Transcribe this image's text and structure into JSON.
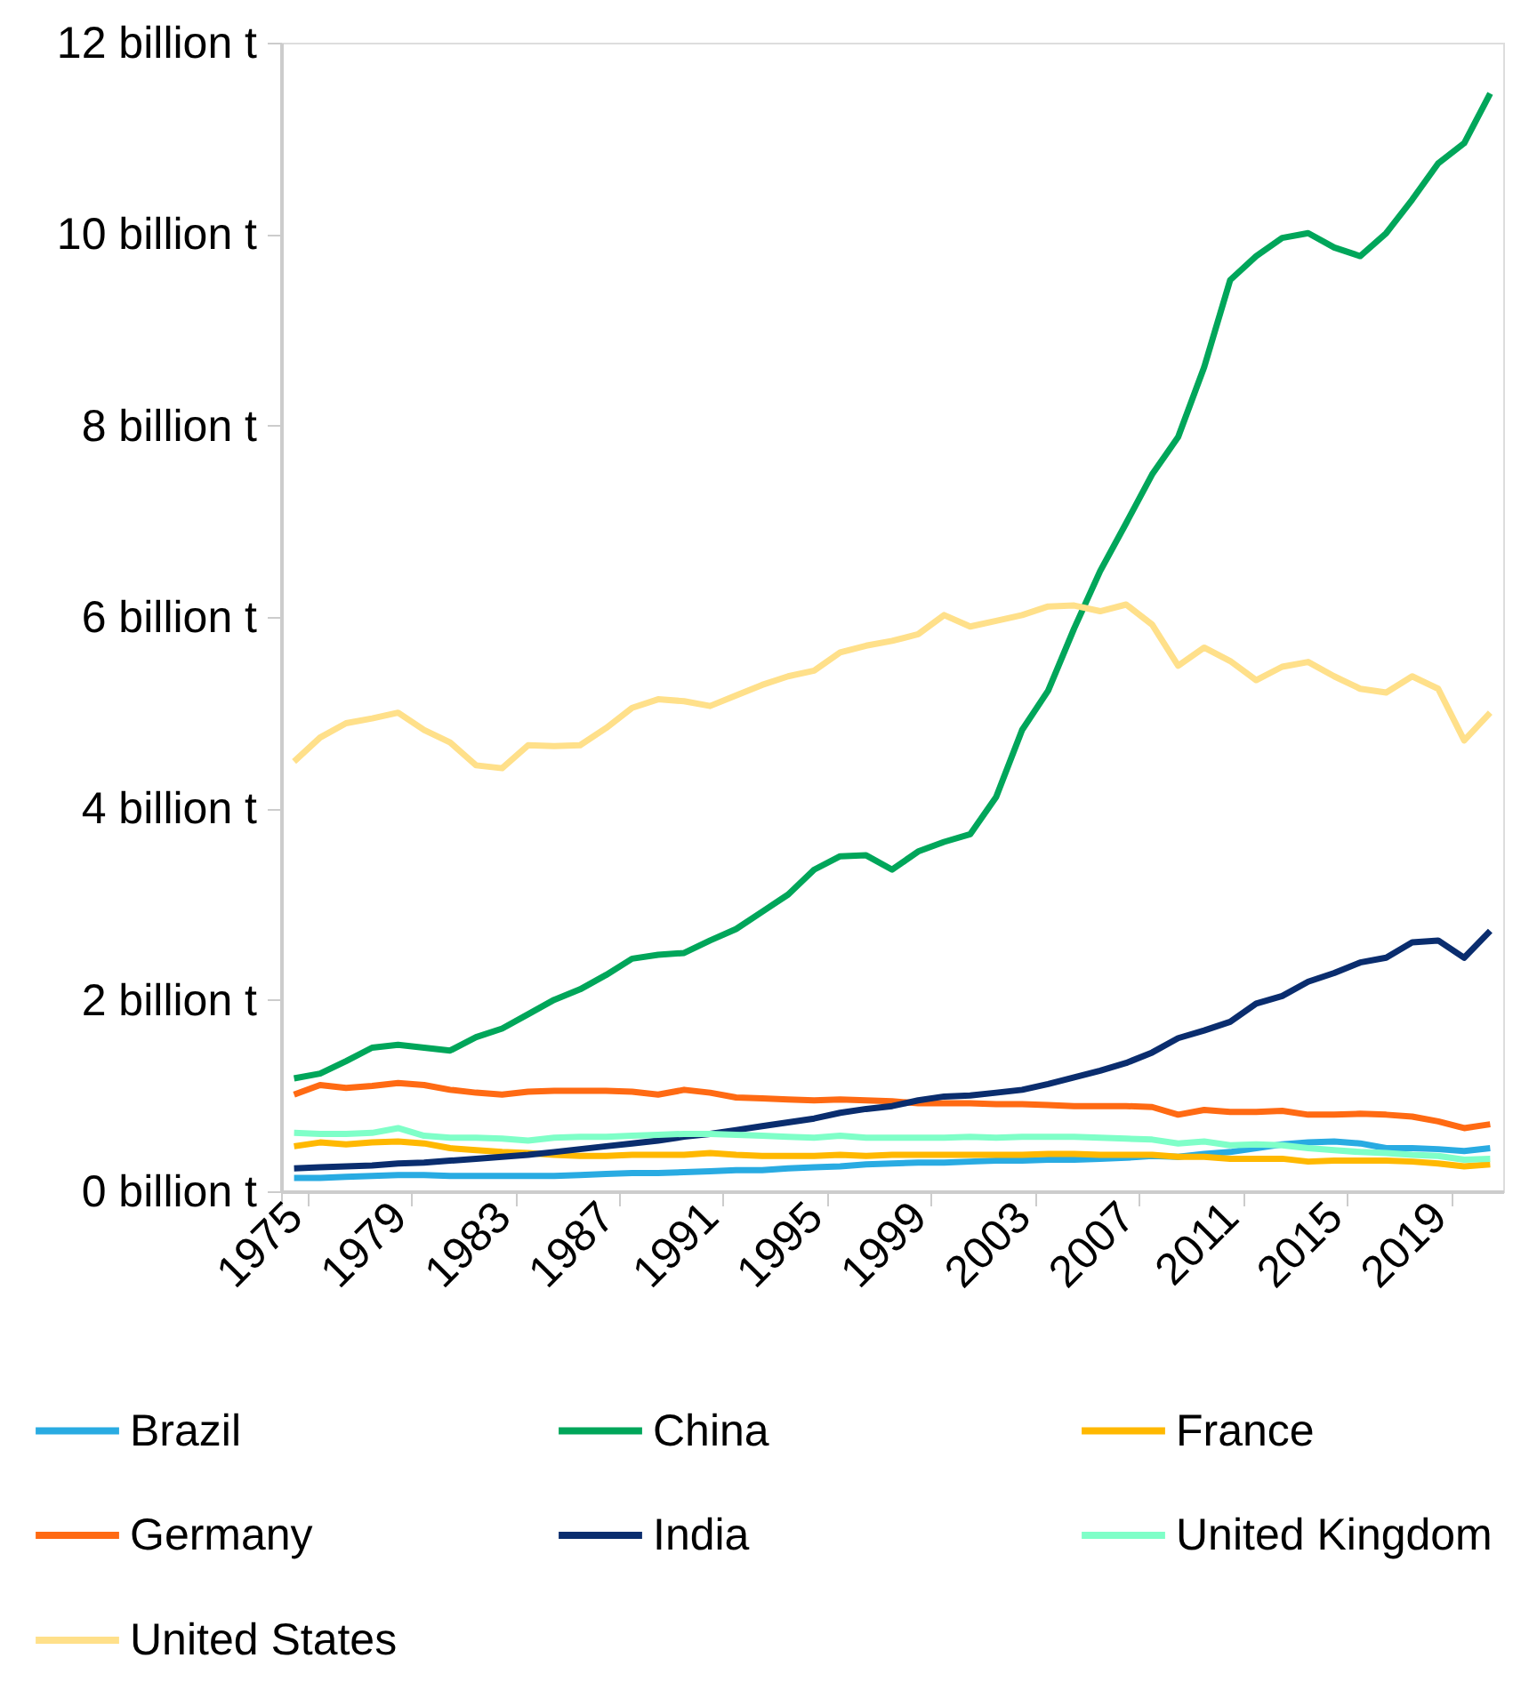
{
  "chart_data": {
    "type": "line",
    "categories": [
      "1975",
      null,
      null,
      null,
      "1979",
      null,
      null,
      null,
      "1983",
      null,
      null,
      null,
      "1987",
      null,
      null,
      null,
      "1991",
      null,
      null,
      null,
      "1995",
      null,
      null,
      null,
      "1999",
      null,
      null,
      null,
      "2003",
      null,
      null,
      null,
      "2007",
      null,
      null,
      null,
      "2011",
      null,
      null,
      null,
      "2015",
      null,
      null,
      null,
      "2019",
      null,
      null
    ],
    "ylim": [
      0,
      12
    ],
    "yticks": [
      {
        "value": 0,
        "label": "0 billion t"
      },
      {
        "value": 2,
        "label": "2 billion t"
      },
      {
        "value": 4,
        "label": "4 billion t"
      },
      {
        "value": 6,
        "label": "6 billion t"
      },
      {
        "value": 8,
        "label": "8 billion t"
      },
      {
        "value": 10,
        "label": "10 billion t"
      },
      {
        "value": 12,
        "label": "12 billion t"
      }
    ],
    "grid": false,
    "legend": "bottom",
    "marker": "none",
    "line_style": "solid",
    "series": [
      {
        "name": "Brazil",
        "color": "#29abe2",
        "values": [
          0.14,
          0.14,
          0.15,
          0.16,
          0.17,
          0.17,
          0.16,
          0.16,
          0.16,
          0.16,
          0.16,
          0.17,
          0.18,
          0.19,
          0.19,
          0.2,
          0.21,
          0.22,
          0.22,
          0.24,
          0.25,
          0.26,
          0.28,
          0.29,
          0.3,
          0.3,
          0.31,
          0.32,
          0.32,
          0.33,
          0.33,
          0.34,
          0.35,
          0.37,
          0.36,
          0.39,
          0.41,
          0.45,
          0.49,
          0.51,
          0.52,
          0.5,
          0.45,
          0.45,
          0.44,
          0.42,
          0.45
        ]
      },
      {
        "name": "China",
        "color": "#00a65a",
        "values": [
          1.18,
          1.23,
          1.36,
          1.5,
          1.53,
          1.5,
          1.47,
          1.61,
          1.7,
          1.85,
          2.0,
          2.11,
          2.26,
          2.43,
          2.47,
          2.49,
          2.62,
          2.74,
          2.92,
          3.1,
          3.36,
          3.5,
          3.51,
          3.36,
          3.55,
          3.65,
          3.73,
          4.12,
          4.82,
          5.23,
          5.88,
          6.48,
          6.98,
          7.49,
          7.88,
          8.61,
          9.52,
          9.77,
          9.96,
          10.01,
          9.86,
          9.77,
          10.01,
          10.36,
          10.74,
          10.95,
          11.47
        ]
      },
      {
        "name": "France",
        "color": "#ffb800",
        "values": [
          0.47,
          0.51,
          0.49,
          0.51,
          0.52,
          0.5,
          0.45,
          0.43,
          0.41,
          0.4,
          0.38,
          0.37,
          0.37,
          0.38,
          0.38,
          0.38,
          0.4,
          0.38,
          0.37,
          0.37,
          0.37,
          0.38,
          0.37,
          0.38,
          0.38,
          0.38,
          0.38,
          0.38,
          0.38,
          0.39,
          0.39,
          0.38,
          0.38,
          0.38,
          0.36,
          0.36,
          0.34,
          0.34,
          0.34,
          0.31,
          0.32,
          0.32,
          0.32,
          0.31,
          0.29,
          0.26,
          0.28
        ]
      },
      {
        "name": "Germany",
        "color": "#ff6a13",
        "values": [
          1.01,
          1.11,
          1.08,
          1.1,
          1.13,
          1.11,
          1.06,
          1.03,
          1.01,
          1.04,
          1.05,
          1.05,
          1.05,
          1.04,
          1.01,
          1.06,
          1.03,
          0.98,
          0.97,
          0.96,
          0.95,
          0.96,
          0.95,
          0.94,
          0.92,
          0.92,
          0.92,
          0.91,
          0.91,
          0.9,
          0.89,
          0.89,
          0.89,
          0.88,
          0.8,
          0.85,
          0.83,
          0.83,
          0.84,
          0.8,
          0.8,
          0.81,
          0.8,
          0.78,
          0.73,
          0.66,
          0.7
        ]
      },
      {
        "name": "India",
        "color": "#0a2d6e",
        "values": [
          0.24,
          0.25,
          0.26,
          0.27,
          0.29,
          0.3,
          0.32,
          0.34,
          0.36,
          0.38,
          0.41,
          0.44,
          0.47,
          0.5,
          0.53,
          0.57,
          0.6,
          0.64,
          0.68,
          0.72,
          0.76,
          0.82,
          0.86,
          0.89,
          0.95,
          0.99,
          1.0,
          1.03,
          1.06,
          1.12,
          1.19,
          1.26,
          1.34,
          1.45,
          1.6,
          1.68,
          1.77,
          1.96,
          2.04,
          2.19,
          2.28,
          2.39,
          2.44,
          2.6,
          2.62,
          2.44,
          2.72
        ]
      },
      {
        "name": "United Kingdom",
        "color": "#7fffc8",
        "values": [
          0.61,
          0.6,
          0.6,
          0.61,
          0.66,
          0.58,
          0.56,
          0.56,
          0.55,
          0.53,
          0.56,
          0.57,
          0.57,
          0.58,
          0.59,
          0.6,
          0.6,
          0.59,
          0.58,
          0.57,
          0.56,
          0.58,
          0.56,
          0.56,
          0.56,
          0.56,
          0.57,
          0.56,
          0.57,
          0.57,
          0.57,
          0.56,
          0.55,
          0.54,
          0.5,
          0.52,
          0.48,
          0.49,
          0.48,
          0.45,
          0.43,
          0.41,
          0.4,
          0.38,
          0.37,
          0.33,
          0.34
        ]
      },
      {
        "name": "United States",
        "color": "#ffe08a",
        "values": [
          4.49,
          4.74,
          4.89,
          4.94,
          5.0,
          4.82,
          4.69,
          4.45,
          4.42,
          4.66,
          4.65,
          4.66,
          4.84,
          5.05,
          5.14,
          5.12,
          5.07,
          5.18,
          5.29,
          5.38,
          5.44,
          5.63,
          5.7,
          5.75,
          5.82,
          6.02,
          5.9,
          5.96,
          6.02,
          6.11,
          6.12,
          6.06,
          6.13,
          5.92,
          5.49,
          5.68,
          5.54,
          5.34,
          5.48,
          5.53,
          5.38,
          5.25,
          5.21,
          5.38,
          5.25,
          4.71,
          5.0
        ]
      }
    ]
  }
}
